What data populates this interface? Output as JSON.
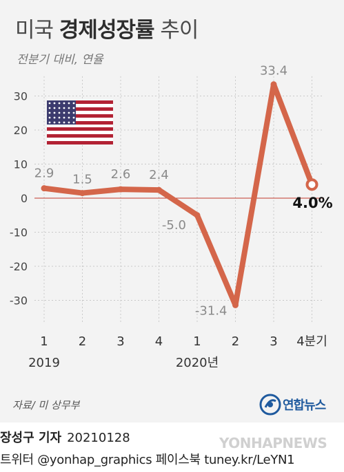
{
  "header": {
    "title_prefix": "미국",
    "title_bold": "경제성장률",
    "title_suffix": "추이",
    "subtitle": "전분기 대비, 연율"
  },
  "chart_data": {
    "type": "line",
    "title": "미국 경제성장률 추이",
    "subtitle": "전분기 대비, 연율",
    "categories": [
      "1",
      "2",
      "3",
      "4",
      "1",
      "2",
      "3",
      "4분기"
    ],
    "year_labels": [
      {
        "label": "2019",
        "index": 0
      },
      {
        "label": "2020년",
        "index": 4
      }
    ],
    "series": [
      {
        "values": [
          2.9,
          1.5,
          2.6,
          2.4,
          -5.0,
          -31.4,
          33.4,
          4.0
        ]
      }
    ],
    "value_labels": [
      "2.9",
      "1.5",
      "2.6",
      "2.4",
      "-5.0",
      "-31.4",
      "33.4",
      "4.0%"
    ],
    "ylim": [
      -36,
      37
    ],
    "yticks": [
      30,
      20,
      10,
      0,
      -10,
      -20,
      -30
    ],
    "grid": true,
    "colors": {
      "line": "#d4664a",
      "zero_line": "#c0392b",
      "grid": "#c8c8c8",
      "last_label": "#111111"
    }
  },
  "flag": {
    "icon": "us-flag-icon"
  },
  "source": "자료/ 미 상무부",
  "logo": {
    "icon": "yonhap-logo-icon",
    "text": "연합뉴스",
    "color": "#1f5a9e"
  },
  "credits": {
    "reporter": "장성구 기자",
    "date": "20210128",
    "social": "트위터 @yonhap_graphics  페이스북 tuney.kr/LeYN1"
  },
  "watermark": "YONHAPNEWS"
}
